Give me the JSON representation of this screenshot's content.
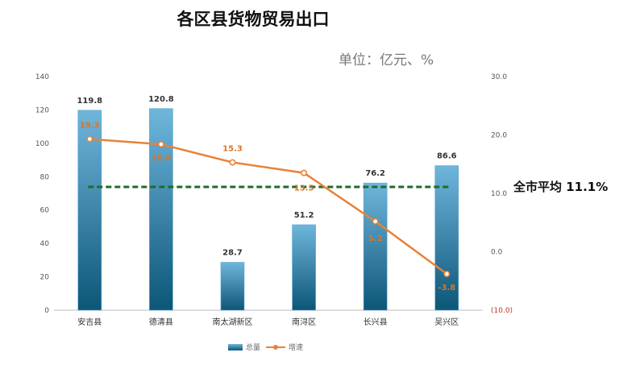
{
  "chart_data": {
    "type": "bar",
    "title": "各区县货物贸易出口",
    "unit_label": "单位：亿元、%",
    "categories": [
      "安吉县",
      "德清县",
      "南太湖新区",
      "南浔区",
      "长兴县",
      "吴兴区"
    ],
    "series": [
      {
        "name": "总量",
        "type": "bar",
        "axis": "left",
        "values": [
          119.8,
          120.8,
          28.7,
          51.2,
          76.2,
          86.6
        ],
        "labels": [
          "119.8",
          "120.8",
          "28.7",
          "51.2",
          "76.2",
          "86.6"
        ]
      },
      {
        "name": "增速",
        "type": "line",
        "axis": "right",
        "values": [
          19.3,
          18.4,
          15.3,
          13.5,
          5.2,
          -3.8
        ],
        "labels": [
          "19.3",
          "18.4",
          "15.3",
          "13.5",
          "5.2",
          "-3.8"
        ]
      }
    ],
    "left_axis": {
      "min": 0,
      "max": 140,
      "ticks": [
        "0",
        "20",
        "40",
        "60",
        "80",
        "100",
        "120",
        "140"
      ]
    },
    "right_axis": {
      "min": -10,
      "max": 30,
      "ticks": [
        "(10.0)",
        "0.0",
        "10.0",
        "20.0",
        "30.0"
      ]
    },
    "reference_line": {
      "value": 11.1,
      "axis": "right",
      "label": "全市平均 11.1%"
    },
    "legend_position": "bottom",
    "colors": {
      "bar": "#2f7fb0",
      "line": "#e8823a",
      "reference": "#1f6b2a"
    }
  }
}
